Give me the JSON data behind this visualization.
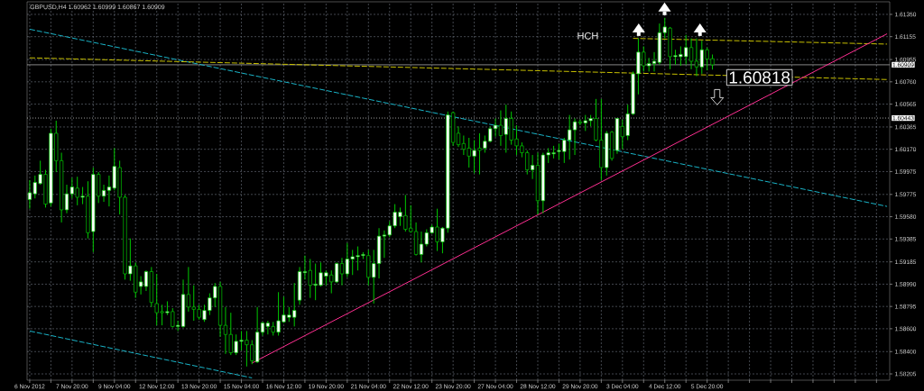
{
  "chart_data": {
    "type": "candlestick",
    "title": "GBPUSD,H4  1.60962 1.60999 1.60867 1.60909",
    "annotations": [
      "HCH",
      "1.60818"
    ],
    "color": "#00c800",
    "grid": true,
    "ylim": [
      1.5815,
      1.6146
    ],
    "yticks": [
      {
        "value": 1.6135,
        "label": "1.61350"
      },
      {
        "value": 1.61155,
        "label": "1.61155"
      },
      {
        "value": 1.60955,
        "label": "1.60955"
      },
      {
        "value": 1.6076,
        "label": "1.60760"
      },
      {
        "value": 1.60565,
        "label": "1.60565"
      },
      {
        "value": 1.60365,
        "label": "1.60365"
      },
      {
        "value": 1.6017,
        "label": "1.60170"
      },
      {
        "value": 1.59975,
        "label": "1.59975"
      },
      {
        "value": 1.59775,
        "label": "1.59775"
      },
      {
        "value": 1.5958,
        "label": "1.59580"
      },
      {
        "value": 1.59385,
        "label": "1.59385"
      },
      {
        "value": 1.59185,
        "label": "1.59185"
      },
      {
        "value": 1.5899,
        "label": "1.58990"
      },
      {
        "value": 1.58795,
        "label": "1.58795"
      },
      {
        "value": 1.586,
        "label": "1.58600"
      },
      {
        "value": 1.584,
        "label": "1.58400"
      },
      {
        "value": 1.58205,
        "label": "1.58205"
      }
    ],
    "ref_lines": [
      {
        "axis": "y",
        "value": 1.60909,
        "label": "1.60909",
        "color": "#c0c0c0",
        "line_style": "solid"
      },
      {
        "axis": "y",
        "value": 1.60443,
        "label": "1.60443",
        "color": "#e0e0e0",
        "line_style": "dotted"
      }
    ],
    "categories": [
      "6 Nov 2012",
      null,
      null,
      null,
      null,
      null,
      null,
      null,
      "7 Nov 20:00",
      null,
      null,
      null,
      null,
      null,
      null,
      null,
      "9 Nov 04:00",
      null,
      null,
      null,
      null,
      null,
      null,
      null,
      "12 Nov 12:00",
      null,
      null,
      null,
      null,
      null,
      null,
      null,
      "13 Nov 20:00",
      null,
      null,
      null,
      null,
      null,
      null,
      null,
      "15 Nov 04:00",
      null,
      null,
      null,
      null,
      null,
      null,
      null,
      "16 Nov 12:00",
      null,
      null,
      null,
      null,
      null,
      null,
      null,
      "19 Nov 20:00",
      null,
      null,
      null,
      null,
      null,
      null,
      null,
      "21 Nov 04:00",
      null,
      null,
      null,
      null,
      null,
      null,
      null,
      "22 Nov 12:00",
      null,
      null,
      null,
      null,
      null,
      null,
      null,
      "23 Nov 20:00",
      null,
      null,
      null,
      null,
      null,
      null,
      null,
      "27 Nov 04:00",
      null,
      null,
      null,
      null,
      null,
      null,
      null,
      "28 Nov 12:00",
      null,
      null,
      null,
      null,
      null,
      null,
      null,
      "29 Nov 20:00",
      null,
      null,
      null,
      null,
      null,
      null,
      null,
      "3 Dec 04:00",
      null,
      null,
      null,
      null,
      null,
      null,
      null,
      "4 Dec 12:00",
      null,
      null,
      null,
      null,
      null,
      null,
      null,
      "5 Dec 20:00",
      null,
      null,
      null,
      null,
      null,
      null,
      null,
      null,
      null,
      null,
      null,
      null,
      null,
      null,
      null,
      null,
      null,
      null,
      null,
      null,
      null,
      null,
      null,
      null,
      null,
      null,
      null,
      null,
      null,
      null,
      null,
      null,
      null,
      null
    ],
    "ohlc": [
      [
        1.5973,
        1.599,
        1.5965,
        1.5979
      ],
      [
        1.5978,
        1.5994,
        1.5974,
        1.5988
      ],
      [
        1.5987,
        1.6007,
        1.5986,
        1.5995
      ],
      [
        1.5995,
        1.5999,
        1.5966,
        1.5969
      ],
      [
        1.597,
        1.6035,
        1.5967,
        1.6031
      ],
      [
        1.6031,
        1.6042,
        1.5997,
        1.6007
      ],
      [
        1.6007,
        1.6014,
        1.5953,
        1.5964
      ],
      [
        1.5964,
        1.5986,
        1.5961,
        1.5978
      ],
      [
        1.5978,
        1.5992,
        1.5974,
        1.5984
      ],
      [
        1.5983,
        1.5993,
        1.5968,
        1.5975
      ],
      [
        1.5975,
        1.5984,
        1.5969,
        1.5976
      ],
      [
        1.5976,
        1.5989,
        1.5939,
        1.5944
      ],
      [
        1.5945,
        1.6001,
        1.5927,
        1.5995
      ],
      [
        1.5995,
        1.5997,
        1.597,
        1.5976
      ],
      [
        1.5976,
        1.5986,
        1.5971,
        1.5981
      ],
      [
        1.5981,
        1.5994,
        1.5967,
        1.5984
      ],
      [
        1.5983,
        1.6018,
        1.5981,
        1.6002
      ],
      [
        1.6001,
        1.6007,
        1.596,
        1.5975
      ],
      [
        1.5975,
        1.5977,
        1.5903,
        1.5908
      ],
      [
        1.5908,
        1.5939,
        1.5902,
        1.5915
      ],
      [
        1.5915,
        1.5918,
        1.5887,
        1.5892
      ],
      [
        1.5897,
        1.5906,
        1.589,
        1.5901
      ],
      [
        1.5897,
        1.5911,
        1.5893,
        1.591
      ],
      [
        1.591,
        1.5914,
        1.5879,
        1.5883
      ],
      [
        1.5882,
        1.5908,
        1.5863,
        1.5874
      ],
      [
        1.5875,
        1.5881,
        1.5863,
        1.5874
      ],
      [
        1.5874,
        1.5884,
        1.5872,
        1.5875
      ],
      [
        1.5875,
        1.5878,
        1.5861,
        1.5862
      ],
      [
        1.5862,
        1.5867,
        1.5858,
        1.5863
      ],
      [
        1.5862,
        1.5903,
        1.5861,
        1.589
      ],
      [
        1.589,
        1.5914,
        1.5875,
        1.5879
      ],
      [
        1.5879,
        1.5898,
        1.5867,
        1.5877
      ],
      [
        1.5877,
        1.5881,
        1.5868,
        1.587
      ],
      [
        1.5868,
        1.5881,
        1.5866,
        1.5876
      ],
      [
        1.5876,
        1.5891,
        1.5872,
        1.5887
      ],
      [
        1.5887,
        1.59,
        1.5879,
        1.5897
      ],
      [
        1.5897,
        1.5901,
        1.5853,
        1.5863
      ],
      [
        1.5863,
        1.5879,
        1.5838,
        1.5855
      ],
      [
        1.5855,
        1.5874,
        1.5837,
        1.5839
      ],
      [
        1.5839,
        1.5855,
        1.5837,
        1.5849
      ],
      [
        1.5849,
        1.5858,
        1.5841,
        1.585
      ],
      [
        1.585,
        1.5858,
        1.5827,
        1.5846
      ],
      [
        1.5846,
        1.585,
        1.5829,
        1.5832
      ],
      [
        1.5831,
        1.5879,
        1.583,
        1.5857
      ],
      [
        1.5857,
        1.5866,
        1.5854,
        1.5865
      ],
      [
        1.5862,
        1.5867,
        1.5855,
        1.5865
      ],
      [
        1.5862,
        1.5866,
        1.5854,
        1.5857
      ],
      [
        1.5857,
        1.5892,
        1.5854,
        1.5867
      ],
      [
        1.5866,
        1.5888,
        1.5865,
        1.5872
      ],
      [
        1.587,
        1.5879,
        1.5866,
        1.5872
      ],
      [
        1.587,
        1.59,
        1.5862,
        1.5876
      ],
      [
        1.5885,
        1.5914,
        1.5881,
        1.591
      ],
      [
        1.5909,
        1.5924,
        1.5903,
        1.591
      ],
      [
        1.5911,
        1.5921,
        1.5887,
        1.5898
      ],
      [
        1.5898,
        1.5917,
        1.5885,
        1.5899
      ],
      [
        1.5898,
        1.5918,
        1.5897,
        1.5909
      ],
      [
        1.5906,
        1.5911,
        1.5898,
        1.5909
      ],
      [
        1.5907,
        1.5911,
        1.5891,
        1.5901
      ],
      [
        1.5901,
        1.5918,
        1.59,
        1.5917
      ],
      [
        1.5917,
        1.5922,
        1.5898,
        1.5908
      ],
      [
        1.5908,
        1.5935,
        1.5905,
        1.5921
      ],
      [
        1.5921,
        1.5929,
        1.5907,
        1.5923
      ],
      [
        1.5923,
        1.5932,
        1.5911,
        1.5924
      ],
      [
        1.5924,
        1.5927,
        1.5921,
        1.5925
      ],
      [
        1.5924,
        1.5929,
        1.5898,
        1.5905
      ],
      [
        1.5905,
        1.5929,
        1.5882,
        1.5917
      ],
      [
        1.5917,
        1.5948,
        1.5904,
        1.5941
      ],
      [
        1.5941,
        1.5946,
        1.5922,
        1.5942
      ],
      [
        1.5942,
        1.5954,
        1.594,
        1.595
      ],
      [
        1.595,
        1.5969,
        1.5948,
        1.5962
      ],
      [
        1.5958,
        1.5966,
        1.595,
        1.5962
      ],
      [
        1.5959,
        1.5977,
        1.5945,
        1.5947
      ],
      [
        1.5948,
        1.5968,
        1.5944,
        1.5945
      ],
      [
        1.5945,
        1.5953,
        1.5924,
        1.5925
      ],
      [
        1.5925,
        1.5945,
        1.5918,
        1.5934
      ],
      [
        1.5934,
        1.5947,
        1.5932,
        1.5944
      ],
      [
        1.5944,
        1.5951,
        1.5943,
        1.5949
      ],
      [
        1.5949,
        1.5965,
        1.5928,
        1.5936
      ],
      [
        1.5936,
        1.5949,
        1.5926,
        1.5948
      ],
      [
        1.5948,
        1.605,
        1.5944,
        1.6047
      ],
      [
        1.6049,
        1.605,
        1.602,
        1.6023
      ],
      [
        1.6031,
        1.6037,
        1.6019,
        1.6021
      ],
      [
        1.6022,
        1.6029,
        1.6012,
        1.6017
      ],
      [
        1.6018,
        1.6027,
        1.6001,
        1.6011
      ],
      [
        1.6011,
        1.6025,
        1.5996,
        1.6016
      ],
      [
        1.6018,
        1.6031,
        1.5995,
        1.6016
      ],
      [
        1.6018,
        1.6029,
        1.6014,
        1.6024
      ],
      [
        1.6024,
        1.6037,
        1.6023,
        1.6035
      ],
      [
        1.6035,
        1.6044,
        1.6028,
        1.6038
      ],
      [
        1.6038,
        1.6051,
        1.602,
        1.6029
      ],
      [
        1.603,
        1.6056,
        1.6014,
        1.6044
      ],
      [
        1.6044,
        1.605,
        1.6021,
        1.6025
      ],
      [
        1.6026,
        1.6038,
        1.6012,
        1.602
      ],
      [
        1.602,
        1.6023,
        1.601,
        1.6014
      ],
      [
        1.6014,
        1.6016,
        1.5995,
        1.5999
      ],
      [
        1.5999,
        1.6012,
        1.5991,
        1.6003
      ],
      [
        1.6003,
        1.6014,
        1.596,
        1.5972
      ],
      [
        1.5972,
        1.6014,
        1.5961,
        1.6012
      ],
      [
        1.6012,
        1.6018,
        1.6005,
        1.6014
      ],
      [
        1.6013,
        1.602,
        1.6009,
        1.6014
      ],
      [
        1.6015,
        1.6022,
        1.6008,
        1.6016
      ],
      [
        1.6015,
        1.6027,
        1.6005,
        1.6025
      ],
      [
        1.6025,
        1.6047,
        1.6008,
        1.6034
      ],
      [
        1.6034,
        1.6044,
        1.6012,
        1.6041
      ],
      [
        1.6041,
        1.6043,
        1.6038,
        1.604
      ],
      [
        1.604,
        1.6047,
        1.6033,
        1.6042
      ],
      [
        1.6042,
        1.6047,
        1.6037,
        1.6044
      ],
      [
        1.6044,
        1.6061,
        1.6024,
        1.6025
      ],
      [
        1.6025,
        1.6061,
        1.599,
        1.6001
      ],
      [
        1.6001,
        1.6033,
        1.5994,
        1.6031
      ],
      [
        1.6032,
        1.6033,
        1.6007,
        1.6009
      ],
      [
        1.6016,
        1.6044,
        1.6013,
        1.6044
      ],
      [
        1.6037,
        1.6043,
        1.6017,
        1.6028
      ],
      [
        1.6029,
        1.6056,
        1.6025,
        1.6048
      ],
      [
        1.6048,
        1.6085,
        1.6047,
        1.6083
      ],
      [
        1.6083,
        1.6114,
        1.6065,
        1.6102
      ],
      [
        1.6102,
        1.6107,
        1.6085,
        1.609
      ],
      [
        1.609,
        1.6097,
        1.6085,
        1.6092
      ],
      [
        1.6092,
        1.6102,
        1.6085,
        1.6094
      ],
      [
        1.6093,
        1.6127,
        1.6091,
        1.6119
      ],
      [
        1.6119,
        1.6132,
        1.6114,
        1.6124
      ],
      [
        1.6123,
        1.6124,
        1.6087,
        1.6098
      ],
      [
        1.6098,
        1.6104,
        1.6091,
        1.6099
      ],
      [
        1.6098,
        1.6107,
        1.609,
        1.61
      ],
      [
        1.6098,
        1.6117,
        1.6091,
        1.6106
      ],
      [
        1.6106,
        1.6114,
        1.6087,
        1.6094
      ],
      [
        1.6094,
        1.6114,
        1.6081,
        1.6089
      ],
      [
        1.6089,
        1.6112,
        1.6083,
        1.6104
      ],
      [
        1.6104,
        1.6106,
        1.6086,
        1.6096
      ],
      [
        1.60962,
        1.60999,
        1.60867,
        1.60909
      ],
      null,
      null,
      null,
      null,
      null,
      null,
      null,
      null,
      null,
      null,
      null,
      null,
      null,
      null,
      null,
      null,
      null,
      null,
      null,
      null,
      null,
      null,
      null,
      null,
      null,
      null,
      null,
      null,
      null,
      null,
      null,
      null,
      null
    ],
    "series": [
      {
        "type": "line",
        "color": "#1ab4c8",
        "line_style": "dashed",
        "values": [
          1.6122,
          null,
          null,
          null,
          null,
          null,
          null,
          null,
          null,
          null,
          null,
          null,
          null,
          null,
          null,
          null,
          null,
          null,
          null,
          null,
          null,
          null,
          null,
          null,
          null,
          null,
          null,
          null,
          null,
          null,
          null,
          null,
          null,
          null,
          null,
          null,
          null,
          null,
          null,
          null,
          null,
          null,
          null,
          null,
          null,
          null,
          null,
          null,
          null,
          null,
          null,
          null,
          null,
          null,
          null,
          null,
          null,
          null,
          null,
          null,
          null,
          null,
          null,
          null,
          null,
          null,
          null,
          null,
          null,
          null,
          null,
          null,
          null,
          null,
          null,
          null,
          null,
          null,
          null,
          null,
          null,
          null,
          null,
          null,
          null,
          null,
          null,
          null,
          null,
          null,
          null,
          null,
          null,
          null,
          null,
          null,
          null,
          null,
          null,
          null,
          null,
          null,
          null,
          null,
          null,
          null,
          null,
          null,
          null,
          null,
          null,
          null,
          null,
          null,
          null,
          null,
          null,
          null,
          null,
          null,
          null,
          null,
          null,
          null,
          null,
          null,
          null,
          null,
          null,
          null,
          null,
          null,
          null,
          null,
          null,
          null,
          null,
          null,
          null,
          null,
          null,
          null,
          null,
          null,
          null,
          null,
          null,
          null,
          null,
          null,
          null,
          null,
          null,
          null,
          null,
          null,
          null,
          null,
          null,
          null,
          null,
          null,
          1.5967
        ]
      },
      {
        "type": "line",
        "color": "#1ab4c8",
        "line_style": "dashed",
        "values": [
          1.5858,
          null,
          null,
          null,
          null,
          null,
          null,
          null,
          null,
          null,
          null,
          null,
          null,
          null,
          null,
          null,
          null,
          null,
          null,
          null,
          null,
          null,
          null,
          null,
          null,
          null,
          null,
          null,
          null,
          null,
          null,
          null,
          null,
          null,
          null,
          null,
          null,
          null,
          null,
          null,
          null,
          null,
          1.5817,
          null,
          null,
          null,
          null,
          null,
          null,
          null,
          null,
          null,
          null,
          null,
          null,
          null,
          null,
          null,
          null,
          null,
          null,
          null,
          null,
          null,
          null,
          null,
          null,
          null,
          null,
          null,
          null,
          null,
          null,
          null,
          null,
          null,
          null,
          null,
          null,
          null,
          null,
          null,
          null,
          null,
          null,
          null,
          null,
          null,
          null,
          null,
          null,
          null,
          null,
          null,
          null,
          null,
          null,
          null,
          null,
          null,
          null,
          null,
          null,
          null,
          null,
          null,
          null,
          null,
          null,
          null,
          null,
          null,
          null,
          null,
          null,
          null,
          null,
          null,
          null,
          null,
          null,
          null,
          null,
          null,
          null,
          null,
          null,
          null,
          null,
          null,
          null,
          null,
          null,
          null,
          null,
          null,
          null,
          null,
          null,
          null,
          null,
          null,
          null,
          null,
          null,
          null,
          null,
          null,
          null,
          null,
          null,
          null,
          null,
          null,
          null,
          null,
          null,
          null,
          null,
          null,
          null,
          null,
          null
        ]
      },
      {
        "type": "line",
        "color": "#c8c000",
        "line_style": "dashed",
        "values": [
          1.6097,
          null,
          null,
          null,
          null,
          null,
          null,
          null,
          null,
          null,
          null,
          null,
          null,
          null,
          null,
          null,
          null,
          null,
          null,
          null,
          null,
          null,
          null,
          null,
          null,
          null,
          null,
          null,
          null,
          null,
          null,
          null,
          null,
          null,
          null,
          null,
          null,
          null,
          null,
          null,
          null,
          null,
          null,
          null,
          null,
          null,
          null,
          null,
          null,
          null,
          null,
          null,
          null,
          null,
          null,
          null,
          null,
          null,
          null,
          null,
          null,
          null,
          null,
          null,
          null,
          null,
          null,
          null,
          null,
          null,
          null,
          null,
          null,
          null,
          null,
          null,
          null,
          null,
          null,
          null,
          null,
          null,
          null,
          null,
          null,
          null,
          null,
          null,
          null,
          null,
          null,
          null,
          null,
          null,
          null,
          null,
          null,
          null,
          null,
          null,
          null,
          null,
          null,
          null,
          null,
          null,
          null,
          null,
          null,
          null,
          null,
          null,
          null,
          null,
          null,
          null,
          null,
          null,
          null,
          null,
          null,
          null,
          null,
          null,
          null,
          null,
          null,
          null,
          null,
          null,
          null,
          null,
          null,
          null,
          null,
          null,
          null,
          null,
          null,
          null,
          null,
          null,
          null,
          null,
          null,
          null,
          null,
          null,
          null,
          null,
          null,
          null,
          null,
          null,
          null,
          null,
          null,
          null,
          null,
          null,
          null,
          null,
          1.6078
        ]
      },
      {
        "type": "line",
        "color": "#c8c000",
        "line_style": "dashed",
        "values": [
          null,
          null,
          null,
          null,
          null,
          null,
          null,
          null,
          null,
          null,
          null,
          null,
          null,
          null,
          null,
          null,
          null,
          null,
          null,
          null,
          null,
          null,
          null,
          null,
          null,
          null,
          null,
          null,
          null,
          null,
          null,
          null,
          null,
          null,
          null,
          null,
          null,
          null,
          null,
          null,
          null,
          null,
          null,
          null,
          null,
          null,
          null,
          null,
          null,
          null,
          null,
          null,
          null,
          null,
          null,
          null,
          null,
          null,
          null,
          null,
          null,
          null,
          null,
          null,
          null,
          null,
          null,
          null,
          null,
          null,
          null,
          null,
          null,
          null,
          null,
          null,
          null,
          null,
          null,
          null,
          null,
          null,
          null,
          null,
          null,
          null,
          null,
          null,
          null,
          null,
          null,
          null,
          null,
          null,
          null,
          null,
          null,
          null,
          null,
          null,
          null,
          null,
          null,
          null,
          null,
          null,
          null,
          null,
          null,
          null,
          null,
          null,
          null,
          null,
          1.6114,
          null,
          null,
          null,
          null,
          null,
          null,
          null,
          null,
          null,
          null,
          null,
          null,
          null,
          null,
          null,
          null,
          null,
          null,
          null,
          null,
          null,
          null,
          null,
          null,
          null,
          null,
          null,
          null,
          null,
          null,
          null,
          null,
          null,
          null,
          null,
          null,
          null,
          null,
          null,
          null,
          null,
          null,
          null,
          null,
          null,
          null,
          null,
          1.6109
        ]
      },
      {
        "type": "line",
        "color": "#ff2f92",
        "line_style": "solid",
        "values": [
          null,
          null,
          null,
          null,
          null,
          null,
          null,
          null,
          null,
          null,
          null,
          null,
          null,
          null,
          null,
          null,
          null,
          null,
          null,
          null,
          null,
          null,
          null,
          null,
          null,
          null,
          null,
          null,
          null,
          null,
          null,
          null,
          null,
          null,
          null,
          null,
          null,
          null,
          null,
          null,
          null,
          null,
          1.583,
          null,
          null,
          null,
          null,
          null,
          null,
          null,
          null,
          null,
          null,
          null,
          null,
          null,
          null,
          null,
          null,
          null,
          null,
          null,
          null,
          null,
          null,
          null,
          null,
          null,
          null,
          null,
          null,
          null,
          null,
          null,
          null,
          null,
          null,
          null,
          null,
          null,
          null,
          null,
          null,
          null,
          null,
          null,
          null,
          null,
          null,
          null,
          null,
          null,
          null,
          null,
          null,
          null,
          null,
          null,
          null,
          null,
          null,
          null,
          null,
          null,
          null,
          null,
          null,
          null,
          null,
          null,
          null,
          null,
          null,
          null,
          null,
          null,
          null,
          null,
          null,
          null,
          null,
          null,
          null,
          null,
          null,
          null,
          null,
          null,
          null,
          null,
          null,
          null,
          null,
          null,
          null,
          null,
          null,
          null,
          null,
          null,
          null,
          null,
          null,
          null,
          null,
          null,
          null,
          null,
          null,
          null,
          null,
          null,
          null,
          null,
          null,
          null,
          null,
          null,
          null,
          null,
          null,
          null,
          1.6118
        ]
      }
    ]
  }
}
